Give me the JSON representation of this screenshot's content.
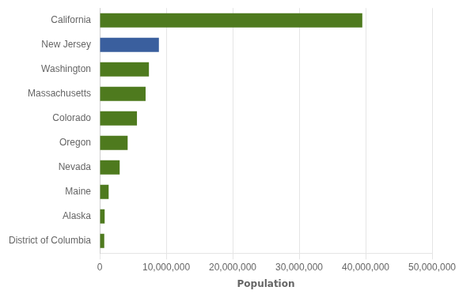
{
  "chart_data": {
    "type": "bar",
    "orientation": "horizontal",
    "x_label": "Population",
    "categories": [
      "California",
      "New Jersey",
      "Washington",
      "Massachusetts",
      "Colorado",
      "Oregon",
      "Nevada",
      "Maine",
      "Alaska",
      "District of Columbia"
    ],
    "values": [
      39500000,
      8900000,
      7400000,
      6900000,
      5600000,
      4200000,
      3000000,
      1340000,
      740000,
      680000
    ],
    "colors": [
      "#4e7a1e",
      "#3a5f9e",
      "#4e7a1e",
      "#4e7a1e",
      "#4e7a1e",
      "#4e7a1e",
      "#4e7a1e",
      "#4e7a1e",
      "#4e7a1e",
      "#4e7a1e"
    ],
    "xlim": [
      0,
      50000000
    ],
    "xticks": [
      0,
      {
        "value": 10000000,
        "label": "10,000,000"
      },
      {
        "value": 20000000,
        "label": "20,000,000"
      },
      {
        "value": 30000000,
        "label": "30,000,000"
      },
      {
        "value": 40000000,
        "label": "40,000,000"
      },
      {
        "value": 50000000,
        "label": "50,000,000"
      }
    ],
    "grid": true
  }
}
